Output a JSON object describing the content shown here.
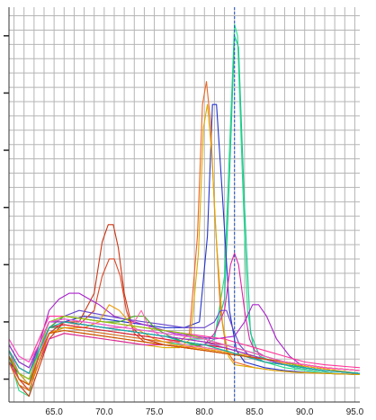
{
  "chart_data": {
    "type": "line",
    "title": "",
    "xlabel": "",
    "ylabel": "",
    "xlim": [
      60.5,
      95.5
    ],
    "ylim": [
      -4,
      65
    ],
    "x_ticks": [
      65,
      70,
      75,
      80,
      85,
      90,
      95
    ],
    "x_tick_labels": [
      "65.0",
      "70.0",
      "75.0",
      "80.0",
      "85.0",
      "90.0",
      "95.0"
    ],
    "y_ticks": [
      0,
      10,
      20,
      30,
      40,
      50,
      60
    ],
    "grid": true,
    "legend": "none",
    "reference_line": {
      "x": 83.0,
      "color": "#1f4fbf",
      "style": "dashed"
    },
    "series": [
      {
        "color": "#22dd88",
        "x": [
          60.5,
          61.5,
          62.5,
          63.5,
          64.5,
          66,
          68,
          70,
          72,
          74,
          76,
          78,
          80,
          81,
          82,
          82.5,
          83,
          83.3,
          83.8,
          84.3,
          85,
          86,
          88,
          90,
          92,
          95.5
        ],
        "y": [
          4,
          -2,
          -3,
          5,
          9,
          9,
          8.5,
          8,
          7.5,
          7,
          6.5,
          6,
          6,
          7,
          18,
          40,
          62,
          60,
          35,
          12,
          4,
          3,
          2,
          1.5,
          1,
          0.8
        ]
      },
      {
        "color": "#20c090",
        "x": [
          60.5,
          61.5,
          62.5,
          63.5,
          64.5,
          66,
          68,
          70,
          72,
          74,
          76,
          78,
          80,
          81,
          82,
          82.5,
          83,
          83.4,
          84,
          84.6,
          85.5,
          87,
          89,
          91,
          93,
          95.5
        ],
        "y": [
          5,
          0,
          -1,
          6,
          10,
          10,
          9.5,
          9,
          8.5,
          8,
          7.5,
          7,
          7,
          7.5,
          14,
          35,
          60,
          58,
          30,
          8,
          4,
          3,
          2,
          1.5,
          1,
          0.8
        ]
      },
      {
        "color": "#2233cc",
        "x": [
          60.5,
          61.5,
          62.5,
          63.5,
          64.5,
          66,
          68,
          70,
          72,
          74,
          76,
          78,
          79.5,
          80.3,
          80.8,
          81.2,
          81.8,
          82.5,
          83.2,
          84,
          86,
          88,
          90,
          92,
          95.5
        ],
        "y": [
          3,
          1,
          -1,
          4,
          8,
          10,
          11,
          10.5,
          10,
          9.5,
          9,
          9,
          10,
          25,
          48,
          48,
          32,
          12,
          5,
          3,
          2,
          1.5,
          1.2,
          1,
          0.8
        ]
      },
      {
        "color": "#ee6622",
        "x": [
          60.5,
          61.5,
          62.5,
          63.5,
          64.5,
          66,
          68,
          70,
          72,
          74,
          76,
          77.5,
          78.5,
          79.3,
          79.8,
          80.2,
          80.6,
          81,
          81.6,
          82.2,
          83,
          85,
          87,
          89,
          92,
          95.5
        ],
        "y": [
          4,
          0,
          -2,
          3,
          8,
          9,
          8.5,
          8,
          7.5,
          7,
          6.5,
          6.5,
          8,
          25,
          48,
          52,
          45,
          30,
          12,
          5,
          3,
          2,
          1.5,
          1.2,
          1,
          0.8
        ]
      },
      {
        "color": "#ddaa00",
        "x": [
          60.5,
          61.5,
          62.5,
          63.5,
          64.5,
          66,
          68,
          70,
          72,
          74,
          76,
          77.5,
          78.6,
          79.4,
          79.9,
          80.3,
          80.7,
          81.2,
          81.8,
          82.4,
          83,
          85,
          87,
          89,
          92,
          95.5
        ],
        "y": [
          4,
          1,
          -1,
          3,
          7,
          8,
          7.5,
          7,
          6.5,
          6,
          5.5,
          5.5,
          7,
          22,
          44,
          48,
          40,
          24,
          10,
          4,
          2.5,
          2,
          1.5,
          1.2,
          1,
          0.8
        ]
      },
      {
        "color": "#cc3311",
        "x": [
          60.5,
          61.5,
          62.5,
          63.5,
          64.5,
          66,
          67.5,
          69,
          69.8,
          70.4,
          70.9,
          71.4,
          72,
          72.8,
          74,
          76,
          78,
          80,
          82,
          84,
          86,
          88,
          90,
          92,
          95.5
        ],
        "y": [
          3,
          -1,
          -3,
          2,
          7,
          10,
          10,
          15,
          24,
          27,
          27,
          23,
          15,
          9,
          7,
          6,
          5.5,
          5,
          4.5,
          4,
          3,
          2.5,
          2,
          1.5,
          1
        ]
      },
      {
        "color": "#dd4422",
        "x": [
          60.5,
          61.5,
          62.5,
          63.5,
          64.5,
          66,
          67.5,
          69,
          69.8,
          70.5,
          71,
          71.6,
          72.2,
          73,
          74,
          76,
          78,
          80,
          82,
          84,
          86,
          88,
          90,
          92,
          95.5
        ],
        "y": [
          4,
          0,
          -2,
          3,
          8,
          10,
          9.5,
          12,
          18,
          21,
          21,
          18,
          12,
          8,
          6.5,
          6,
          5.5,
          5,
          4.5,
          4,
          3,
          2.5,
          2,
          1.5,
          1
        ]
      },
      {
        "color": "#dd22aa",
        "x": [
          60.5,
          61.5,
          62.5,
          63.5,
          64.5,
          66,
          68,
          70,
          72,
          74,
          76,
          78,
          80,
          81,
          82,
          82.6,
          83,
          83.4,
          84,
          84.5,
          85,
          86,
          88,
          90,
          92,
          95.5
        ],
        "y": [
          3,
          0,
          -1,
          3,
          7,
          8,
          7.5,
          7,
          6.5,
          6,
          6,
          5.5,
          6,
          8,
          12,
          20,
          22,
          20,
          12,
          7,
          5,
          4,
          3,
          2,
          1.5,
          1
        ]
      },
      {
        "color": "#aa22cc",
        "x": [
          60.5,
          61.5,
          62.5,
          63.5,
          64.5,
          65.5,
          66.5,
          67.5,
          68.5,
          69.5,
          71,
          73,
          75,
          77,
          79,
          81,
          83,
          84,
          84.8,
          85.4,
          86.2,
          87.2,
          88.5,
          90,
          92,
          95.5
        ],
        "y": [
          5,
          2,
          1,
          6,
          12,
          14,
          15,
          15,
          14,
          13,
          11,
          10,
          9,
          8,
          7.5,
          7,
          7.5,
          10,
          13,
          13,
          11,
          7,
          4,
          2,
          1.5,
          1
        ]
      },
      {
        "color": "#6644cc",
        "x": [
          60.5,
          61.5,
          62.5,
          63.5,
          64.5,
          66,
          67.5,
          69,
          70.5,
          72,
          74,
          76,
          78,
          80,
          81,
          81.6,
          82.2,
          82.8,
          83.5,
          84.5,
          86,
          88,
          90,
          92,
          95.5
        ],
        "y": [
          4,
          1,
          0,
          4,
          9,
          11,
          12,
          11.5,
          11,
          10.5,
          10,
          9.5,
          9,
          9,
          10,
          12,
          12,
          9,
          6,
          4,
          3,
          2.5,
          2,
          1.5,
          1
        ]
      },
      {
        "color": "#44aa22",
        "x": [
          60.5,
          61.5,
          62.5,
          63.5,
          64.5,
          66,
          68,
          70,
          71.5,
          73,
          74,
          75,
          76.5,
          78,
          80,
          82,
          84,
          86,
          88,
          90,
          92,
          95.5
        ],
        "y": [
          5,
          1,
          0,
          4,
          9,
          11,
          10.5,
          10,
          10,
          11,
          11,
          9,
          7.5,
          6.5,
          5.5,
          5,
          4,
          3,
          2.5,
          2,
          1.5,
          1
        ]
      },
      {
        "color": "#ee9900",
        "x": [
          60.5,
          61.5,
          62.5,
          63.5,
          64.5,
          66,
          68,
          69.5,
          70.5,
          71.5,
          73,
          75,
          77,
          79,
          81,
          83,
          85,
          87,
          89,
          91,
          95.5
        ],
        "y": [
          4,
          0,
          -1,
          3,
          8,
          9,
          9,
          10,
          13,
          12,
          9,
          7,
          6,
          5.5,
          5,
          4.5,
          4,
          3,
          2.5,
          2,
          1
        ]
      },
      {
        "color": "#ff66aa",
        "x": [
          60.5,
          61.5,
          62.5,
          63.5,
          64.5,
          66,
          68,
          70,
          72,
          73,
          73.7,
          74.5,
          76,
          78,
          80,
          82,
          84,
          86,
          88,
          90,
          92,
          95.5
        ],
        "y": [
          5,
          1,
          0,
          4,
          9,
          10,
          9.5,
          9,
          9,
          10,
          12,
          9,
          7,
          6,
          5.5,
          5,
          4,
          3,
          2.5,
          2,
          1.5,
          1
        ]
      },
      {
        "color": "#cc2266",
        "x": [
          60.5,
          61.5,
          62.5,
          63.5,
          64.5,
          66,
          68,
          70,
          72,
          74,
          76,
          78,
          80,
          82,
          84,
          86,
          88,
          90,
          92,
          95.5
        ],
        "y": [
          6,
          3,
          2,
          6,
          10,
          10,
          9.5,
          9,
          8.5,
          8,
          7.5,
          7,
          6.5,
          6,
          5,
          4,
          3,
          2.5,
          2,
          1.5
        ]
      },
      {
        "color": "#3366ee",
        "x": [
          60.5,
          61.5,
          62.5,
          63.5,
          64.5,
          66,
          68,
          70,
          72,
          74,
          76,
          78,
          80,
          82,
          84,
          86,
          88,
          90,
          92,
          95.5
        ],
        "y": [
          5,
          2,
          1,
          5,
          9,
          9.5,
          9,
          8.5,
          8,
          7.5,
          7,
          6.5,
          6,
          5.5,
          4.5,
          3.5,
          2.5,
          2,
          1.5,
          1
        ]
      },
      {
        "color": "#ff3399",
        "x": [
          60.5,
          61.5,
          62.5,
          63.5,
          64.5,
          66,
          68,
          70,
          72,
          74,
          76,
          78,
          80,
          82,
          84,
          86,
          88,
          90,
          92,
          95.5
        ],
        "y": [
          7,
          4,
          3,
          7,
          11,
          11,
          10.5,
          10,
          9.5,
          9,
          8.5,
          8,
          7.5,
          7,
          6,
          5,
          4,
          3,
          2.5,
          2
        ]
      },
      {
        "color": "#dd7711",
        "x": [
          60.5,
          61.5,
          62.5,
          63.5,
          64.5,
          66,
          68,
          70,
          72,
          74,
          76,
          78,
          80,
          82,
          84,
          86,
          88,
          90,
          92,
          95.5
        ],
        "y": [
          3,
          -1,
          -2,
          3,
          8,
          8.5,
          8,
          7.5,
          7,
          6.5,
          6,
          5.5,
          5,
          4.5,
          4,
          3.5,
          3,
          2.5,
          2,
          1.5
        ]
      },
      {
        "color": "#2299dd",
        "x": [
          60.5,
          61.5,
          62.5,
          63.5,
          64.5,
          66,
          68,
          70,
          72,
          74,
          76,
          78,
          80,
          82,
          84,
          86,
          88,
          90,
          92,
          95.5
        ],
        "y": [
          6,
          3,
          2,
          6,
          10,
          10.5,
          10,
          9.5,
          9,
          8.5,
          8,
          7.5,
          7,
          6,
          5,
          4,
          3,
          2,
          1.5,
          1
        ]
      },
      {
        "color": "#88cc00",
        "x": [
          60.5,
          61.5,
          62.5,
          63.5,
          64.5,
          66,
          68,
          70,
          72,
          74,
          76,
          78,
          80,
          82,
          84,
          86,
          88,
          90,
          92,
          95.5
        ],
        "y": [
          4,
          1,
          0,
          5,
          10,
          11,
          10.5,
          10,
          9.5,
          9,
          8.5,
          8,
          7,
          6,
          5,
          4,
          3,
          2,
          1.5,
          1
        ]
      },
      {
        "color": "#ee2222",
        "x": [
          60.5,
          61.5,
          62.5,
          63.5,
          64.5,
          66,
          68,
          70,
          72,
          74,
          76,
          78,
          80,
          82,
          84,
          86,
          88,
          90,
          92,
          95.5
        ],
        "y": [
          5,
          2,
          1,
          5,
          9,
          9.5,
          9,
          8.5,
          8,
          7.5,
          7,
          6.5,
          6,
          5.5,
          4.5,
          3.5,
          3,
          2.5,
          2,
          1.5
        ]
      },
      {
        "color": "#9933cc",
        "x": [
          60.5,
          61.5,
          62.5,
          63.5,
          64.5,
          66,
          68,
          70,
          72,
          74,
          76,
          78,
          80,
          82,
          84,
          86,
          88,
          90,
          92,
          95.5
        ],
        "y": [
          6,
          3,
          2,
          6,
          10,
          10,
          9.5,
          9,
          8.5,
          8,
          7.5,
          7,
          6.5,
          5.5,
          4.5,
          3.5,
          2.5,
          2,
          1.5,
          1
        ]
      },
      {
        "color": "#00bbaa",
        "x": [
          60.5,
          61.5,
          62.5,
          63.5,
          64.5,
          66,
          68,
          70,
          72,
          74,
          76,
          78,
          80,
          82,
          84,
          86,
          88,
          90,
          92,
          95.5
        ],
        "y": [
          5,
          2,
          1,
          5,
          9,
          10,
          9.5,
          9,
          8.5,
          8,
          7.5,
          6.5,
          6,
          5,
          4,
          3,
          2.5,
          2,
          1.5,
          1
        ]
      },
      {
        "color": "#cc5500",
        "x": [
          60.5,
          61.5,
          62.5,
          63.5,
          64.5,
          66,
          68,
          70,
          72,
          74,
          76,
          78,
          80,
          82,
          84,
          86,
          88,
          90,
          92,
          95.5
        ],
        "y": [
          4,
          0,
          -1,
          4,
          8,
          8.5,
          8,
          7.5,
          7,
          6.5,
          6,
          5.5,
          5,
          4.5,
          4,
          3.5,
          3,
          2.5,
          2,
          1.5
        ]
      },
      {
        "color": "#ff55cc",
        "x": [
          60.5,
          61.5,
          62.5,
          63.5,
          64.5,
          66,
          68,
          70,
          72,
          74,
          76,
          78,
          80,
          82,
          84,
          86,
          88,
          90,
          92,
          95.5
        ],
        "y": [
          7,
          4,
          3,
          6,
          10,
          10.5,
          10,
          9.5,
          9,
          8.5,
          8,
          7.5,
          7,
          6,
          5,
          4,
          3,
          2.5,
          2,
          1.5
        ]
      }
    ]
  }
}
